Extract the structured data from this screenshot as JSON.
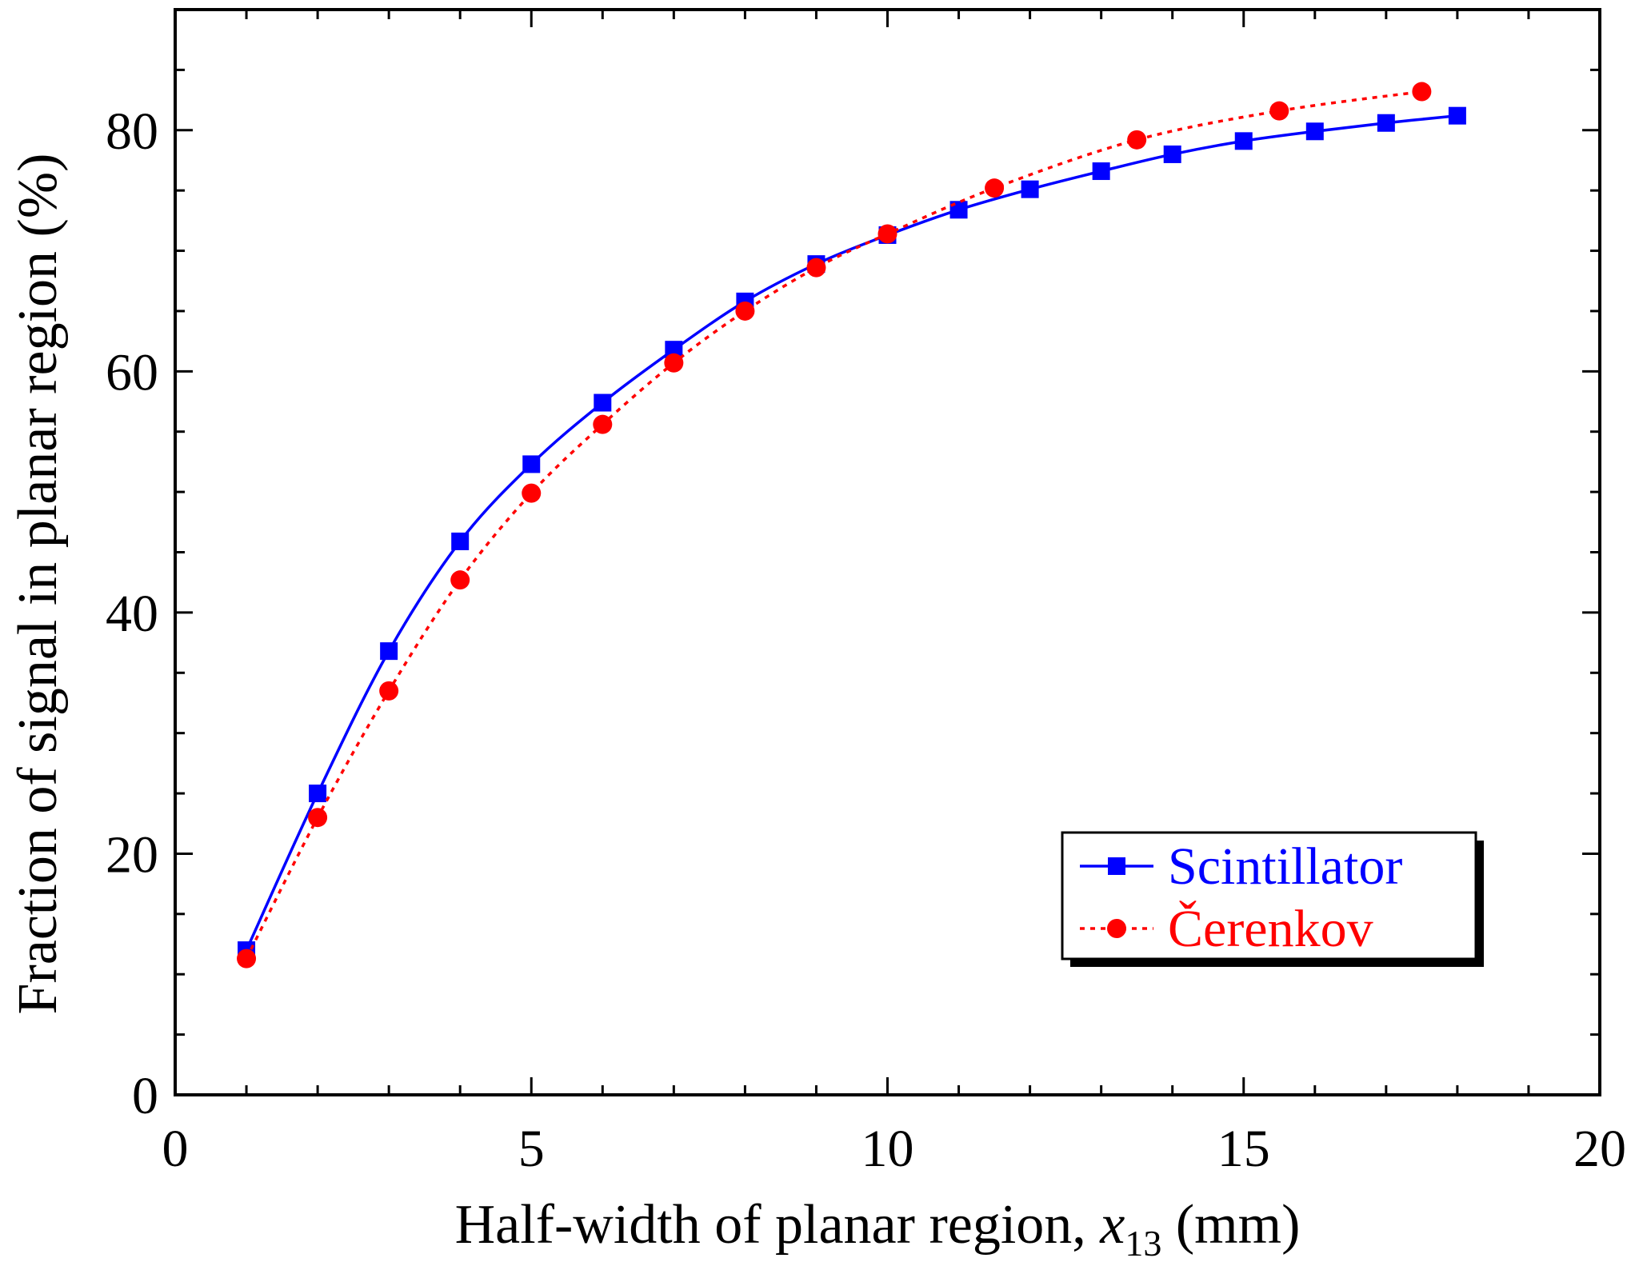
{
  "chart_data": {
    "type": "line",
    "title": "",
    "xlabel": "Half-width of planar region, x13 (mm)",
    "xlabel_parts": {
      "prefix": "Half-width of planar region, ",
      "var": "x",
      "sub": "13",
      "suffix": " (mm)"
    },
    "ylabel": "Fraction of signal in planar region (%)",
    "xlim": [
      0,
      20
    ],
    "ylim": [
      0,
      90
    ],
    "x_ticks": [
      0,
      5,
      10,
      15,
      20
    ],
    "x_tick_labels": [
      "0",
      "5",
      "10",
      "15",
      "20"
    ],
    "y_ticks": [
      0,
      20,
      40,
      60,
      80
    ],
    "y_tick_labels": [
      "0",
      "20",
      "40",
      "60",
      "80"
    ],
    "x_minor_step": 1,
    "y_minor_step": 5,
    "grid": false,
    "legend_position": "bottom-right",
    "series": [
      {
        "name": "Scintillator",
        "color": "#0000ff",
        "line_style": "solid",
        "marker": "square",
        "x": [
          1,
          2,
          3,
          4,
          5,
          6,
          7,
          8,
          9,
          10,
          11,
          12,
          13,
          14,
          15,
          16,
          17,
          18
        ],
        "y": [
          12.0,
          25.0,
          36.8,
          45.9,
          52.3,
          57.4,
          61.8,
          65.8,
          68.9,
          71.3,
          73.4,
          75.1,
          76.6,
          78.0,
          79.1,
          79.9,
          80.6,
          81.2
        ]
      },
      {
        "name": "Čerenkov",
        "color": "#ff0000",
        "line_style": "dotted",
        "marker": "circle",
        "x": [
          1,
          2,
          3,
          4,
          5,
          6,
          7,
          8,
          9,
          10,
          11.5,
          13.5,
          15.5,
          17.5
        ],
        "y": [
          11.3,
          23.0,
          33.5,
          42.7,
          49.9,
          55.6,
          60.7,
          65.0,
          68.6,
          71.4,
          75.2,
          79.2,
          81.6,
          83.2
        ]
      }
    ]
  }
}
